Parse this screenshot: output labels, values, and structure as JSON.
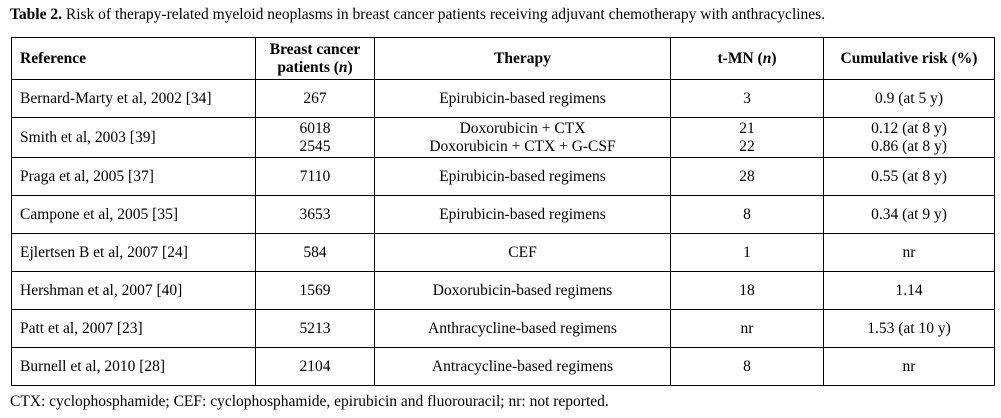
{
  "caption": {
    "label": "Table 2.",
    "text": " Risk of therapy-related myeloid neoplasms in breast cancer patients receiving adjuvant chemotherapy with anthracyclines."
  },
  "headers": {
    "reference": "Reference",
    "patients_line1": "Breast cancer",
    "patients_line2_pre": "patients (",
    "patients_line2_n": "n",
    "patients_line2_post": ")",
    "therapy": "Therapy",
    "tmn_pre": "t-MN (",
    "tmn_n": "n",
    "tmn_post": ")",
    "risk": "Cumulative risk (%)"
  },
  "rows": [
    {
      "reference": "Bernard-Marty et al, 2002 [34]",
      "patients": [
        "267"
      ],
      "therapy": [
        "Epirubicin-based regimens"
      ],
      "tmn": [
        "3"
      ],
      "risk": [
        "0.9 (at 5 y)"
      ]
    },
    {
      "reference": "Smith et al, 2003 [39]",
      "patients": [
        "6018",
        "2545"
      ],
      "therapy": [
        "Doxorubicin + CTX",
        "Doxorubicin + CTX + G-CSF"
      ],
      "tmn": [
        "21",
        "22"
      ],
      "risk": [
        "0.12 (at 8 y)",
        "0.86 (at 8 y)"
      ]
    },
    {
      "reference": "Praga et al, 2005 [37]",
      "patients": [
        "7110"
      ],
      "therapy": [
        "Epirubicin-based regimens"
      ],
      "tmn": [
        "28"
      ],
      "risk": [
        "0.55 (at 8 y)"
      ]
    },
    {
      "reference": "Campone et al, 2005 [35]",
      "patients": [
        "3653"
      ],
      "therapy": [
        "Epirubicin-based regimens"
      ],
      "tmn": [
        "8"
      ],
      "risk": [
        "0.34 (at 9 y)"
      ]
    },
    {
      "reference": "Ejlertsen B et al, 2007 [24]",
      "patients": [
        "584"
      ],
      "therapy": [
        "CEF"
      ],
      "tmn": [
        "1"
      ],
      "risk": [
        "nr"
      ]
    },
    {
      "reference": "Hershman et al, 2007 [40]",
      "patients": [
        "1569"
      ],
      "therapy": [
        "Doxorubicin-based regimens"
      ],
      "tmn": [
        "18"
      ],
      "risk": [
        "1.14"
      ]
    },
    {
      "reference": "Patt et al, 2007 [23]",
      "patients": [
        "5213"
      ],
      "therapy": [
        "Anthracycline-based regimens"
      ],
      "tmn": [
        "nr"
      ],
      "risk": [
        "1.53 (at 10 y)"
      ]
    },
    {
      "reference": "Burnell et al, 2010 [28]",
      "patients": [
        "2104"
      ],
      "therapy": [
        "Antracycline-based regimens"
      ],
      "tmn": [
        "8"
      ],
      "risk": [
        "nr"
      ]
    }
  ],
  "footnote": "CTX: cyclophosphamide; CEF: cyclophosphamide, epirubicin and fluorouracil; nr: not reported."
}
